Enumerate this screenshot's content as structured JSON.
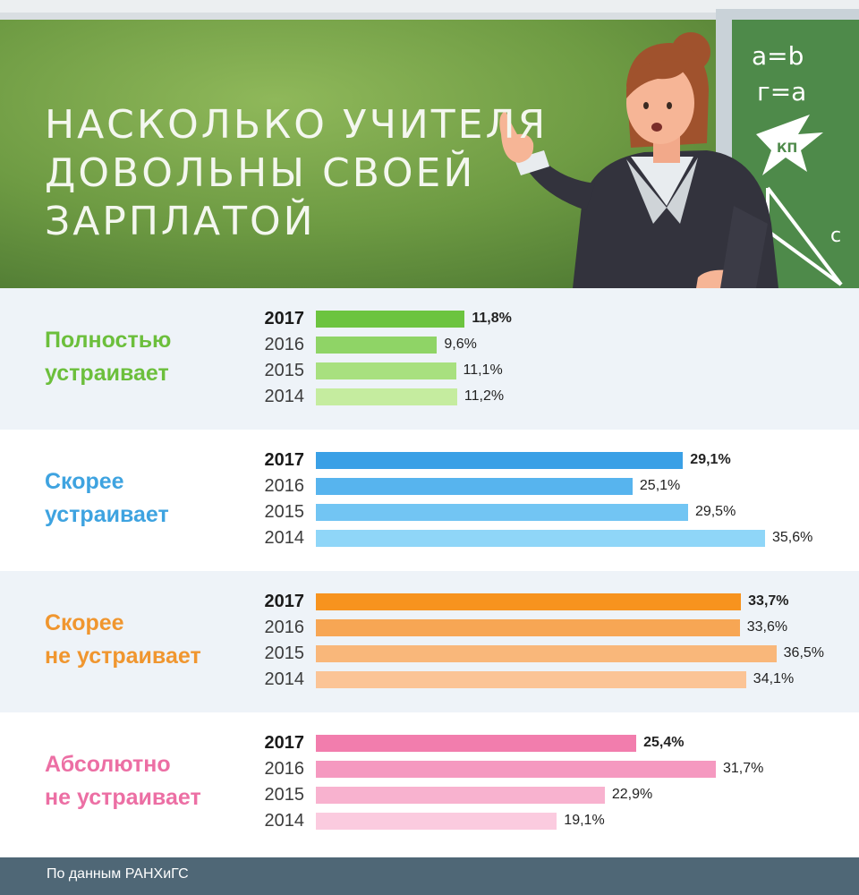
{
  "header": {
    "title_lines": [
      "Насколько учителя",
      "довольны своей",
      "зарплатой"
    ],
    "board_text": [
      "a=b",
      "г=a",
      "c"
    ],
    "logo_text": "КП"
  },
  "colors": {
    "board_dark": "#4f7a33",
    "board_light": "#8fb85a",
    "footer": "#4f6776",
    "panel_shaded": "#eef3f8",
    "panel_plain": "#ffffff"
  },
  "chart_data": {
    "type": "bar",
    "orientation": "horizontal",
    "years": [
      "2017",
      "2016",
      "2015",
      "2014"
    ],
    "unit": "%",
    "groups": [
      {
        "label_lines": [
          "Полностью",
          "устраивает"
        ],
        "label_color": "#6cbf3c",
        "bar_colors": [
          "#6cc43f",
          "#8fd466",
          "#a8e07f",
          "#c5ec9f"
        ],
        "values": [
          11.8,
          9.6,
          11.1,
          11.2
        ],
        "value_labels": [
          "11,8%",
          "9,6%",
          "11,1%",
          "11,2%"
        ]
      },
      {
        "label_lines": [
          "Скорее",
          "устраивает"
        ],
        "label_color": "#3ea3e0",
        "bar_colors": [
          "#3aa0e6",
          "#57b4ee",
          "#72c5f3",
          "#8fd6f8"
        ],
        "values": [
          29.1,
          25.1,
          29.5,
          35.6
        ],
        "value_labels": [
          "29,1%",
          "25,1%",
          "29,5%",
          "35,6%"
        ]
      },
      {
        "label_lines": [
          "Скорее",
          "не устраивает"
        ],
        "label_color": "#f0962f",
        "bar_colors": [
          "#f7931e",
          "#f7a654",
          "#f9b77a",
          "#fbc496"
        ],
        "values": [
          33.7,
          33.6,
          36.5,
          34.1
        ],
        "value_labels": [
          "33,7%",
          "33,6%",
          "36,5%",
          "34,1%"
        ]
      },
      {
        "label_lines": [
          "Абсолютно",
          "не устраивает"
        ],
        "label_color": "#ec6fa4",
        "bar_colors": [
          "#f27dad",
          "#f599c0",
          "#f8b2cf",
          "#fbcbdf"
        ],
        "values": [
          25.4,
          31.7,
          22.9,
          19.1
        ],
        "value_labels": [
          "25,4%",
          "31,7%",
          "22,9%",
          "19,1%"
        ]
      }
    ]
  },
  "footer": {
    "source": "По данным РАНХиГС"
  }
}
